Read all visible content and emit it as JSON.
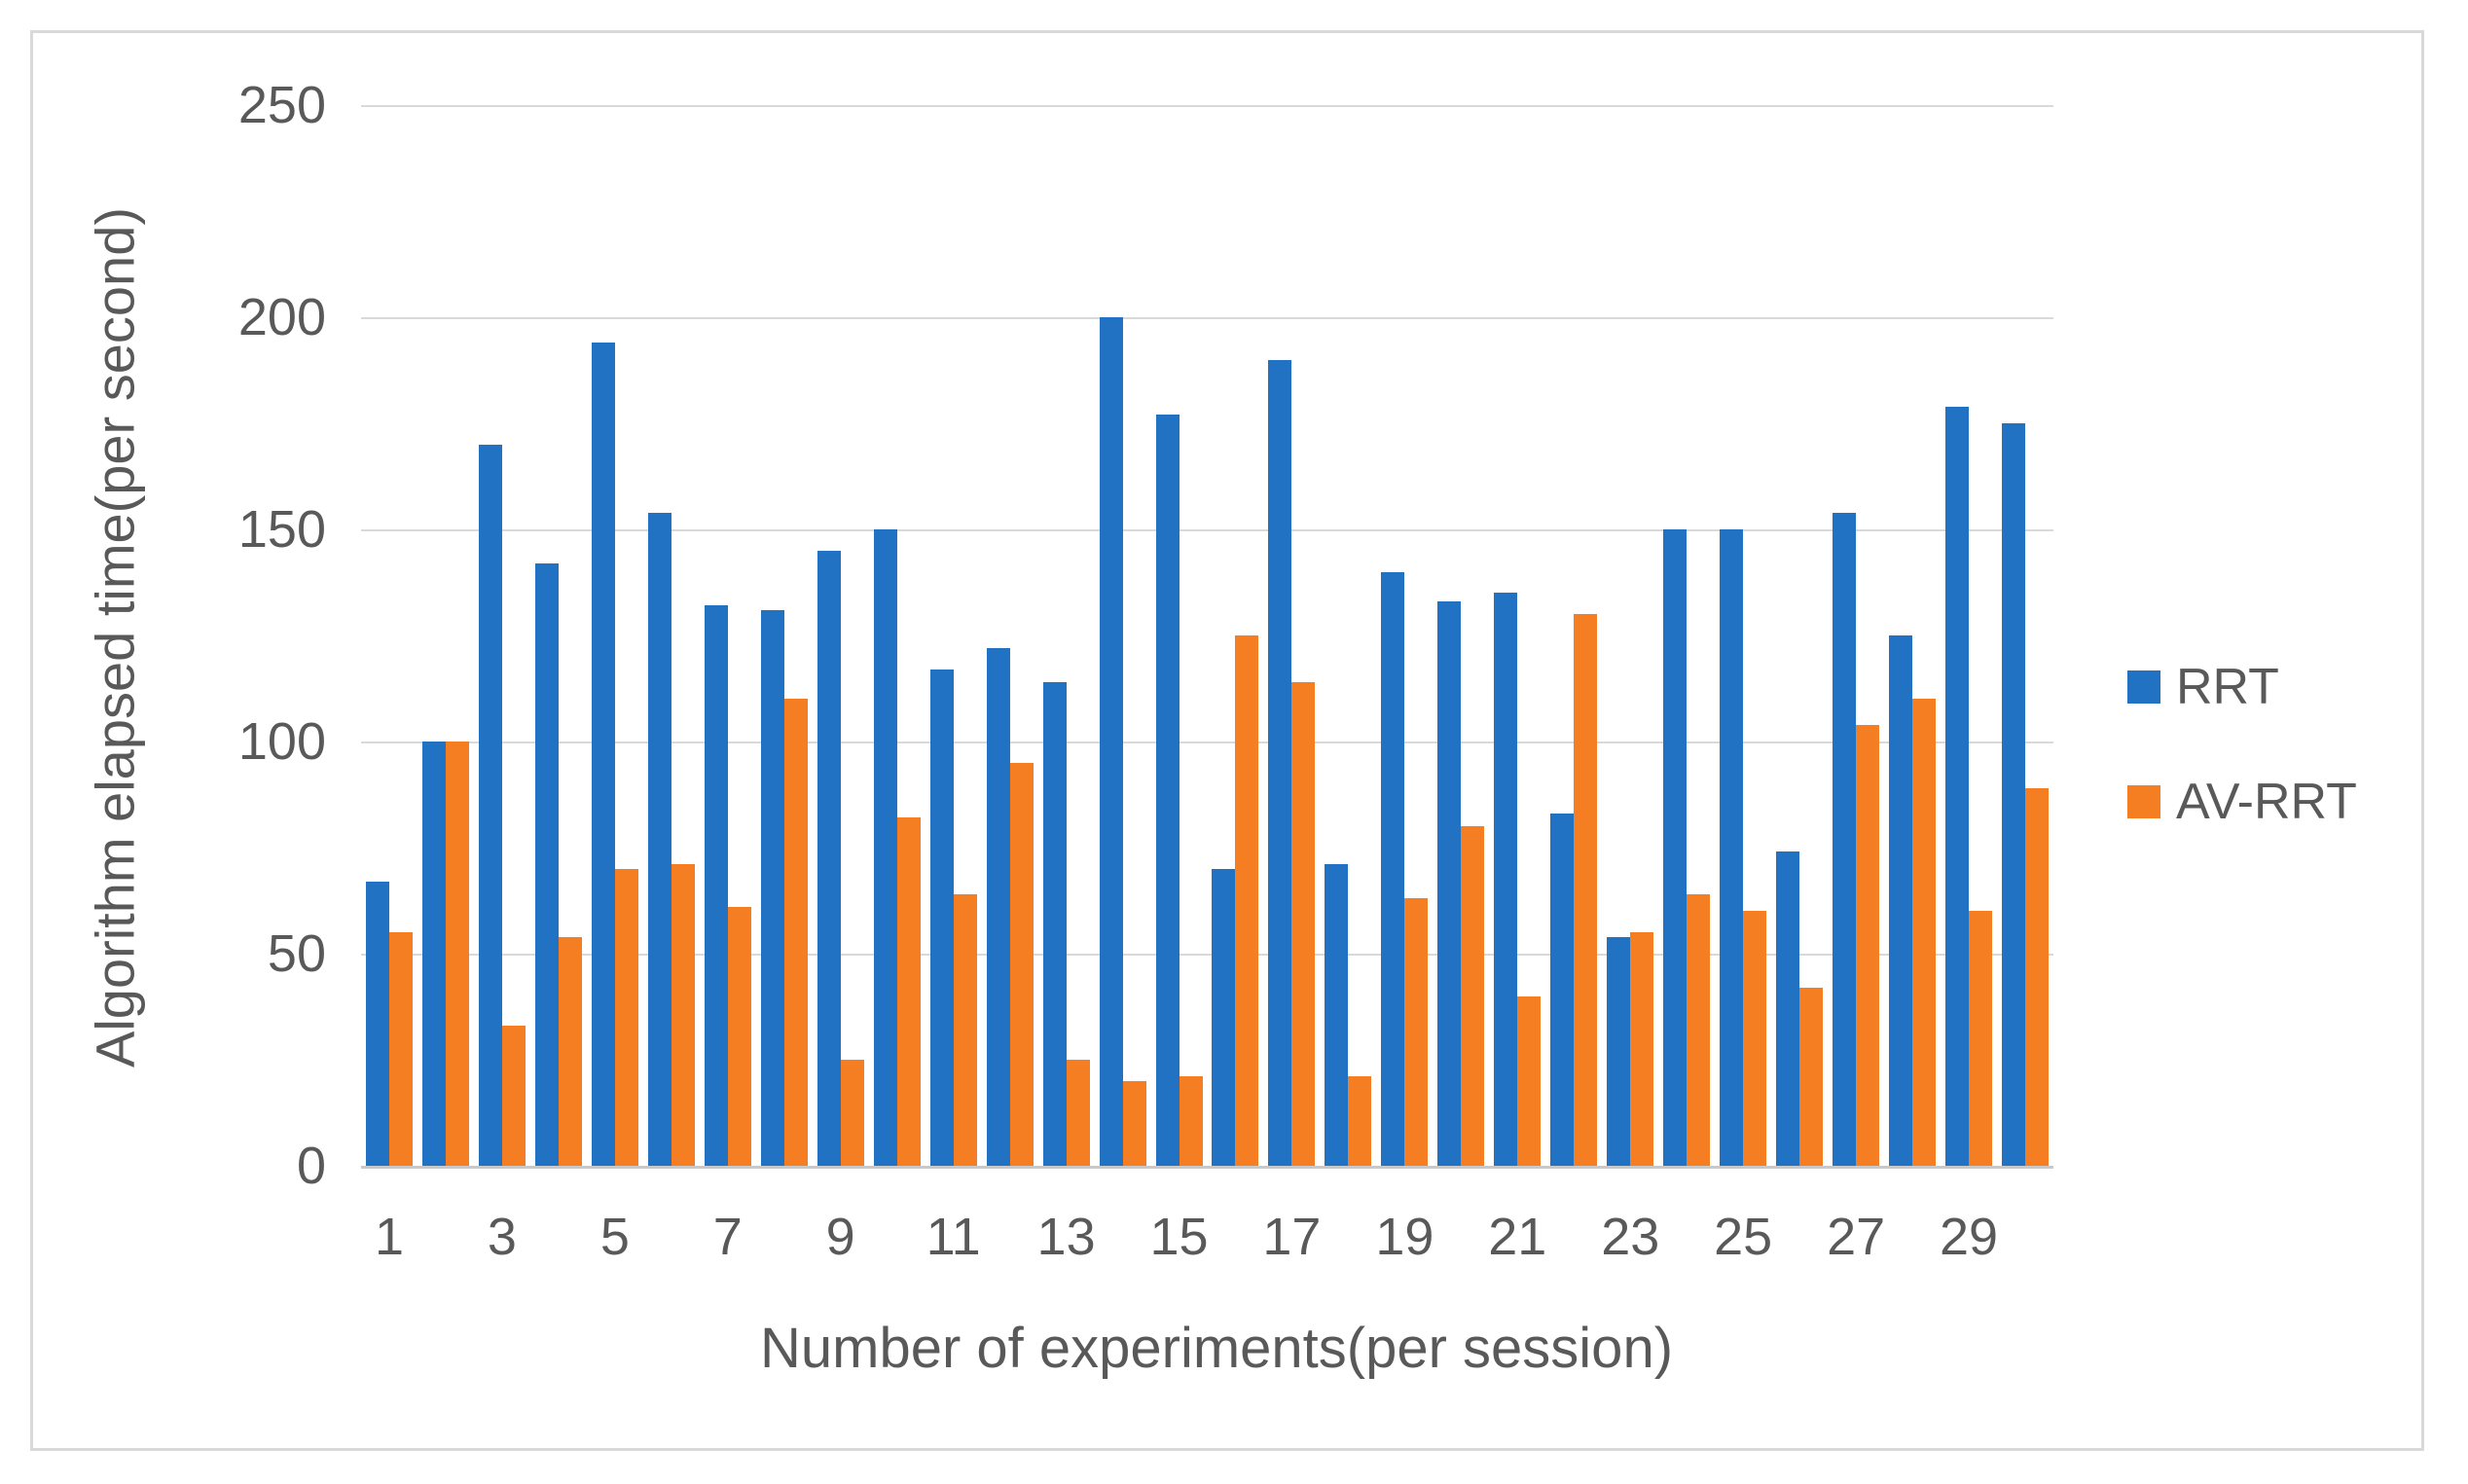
{
  "style": {
    "frame_border_color": "#d9d9d9",
    "gridline_color": "#d9d9d9",
    "baseline_color": "#c9c9c9",
    "text_color": "#595959",
    "background_color": "#ffffff"
  },
  "chart_data": {
    "type": "bar",
    "title": "",
    "xlabel": "Number of experiments(per session)",
    "ylabel": "Algorithm elapsed time(per second)",
    "categories": [
      1,
      2,
      3,
      4,
      5,
      6,
      7,
      8,
      9,
      10,
      11,
      12,
      13,
      14,
      15,
      16,
      17,
      18,
      19,
      20,
      21,
      22,
      23,
      24,
      25,
      26,
      27,
      28,
      29,
      30
    ],
    "x_tick_labels": [
      "1",
      "3",
      "5",
      "7",
      "9",
      "11",
      "13",
      "15",
      "17",
      "19",
      "21",
      "23",
      "25",
      "27",
      "29"
    ],
    "y_ticks": [
      0,
      50,
      100,
      150,
      200,
      250
    ],
    "ylim": [
      0,
      250
    ],
    "grid": true,
    "legend_position": "right",
    "series": [
      {
        "name": "RRT",
        "color": "#2272c4",
        "values": [
          67,
          100,
          170,
          142,
          194,
          154,
          132,
          131,
          145,
          150,
          117,
          122,
          114,
          200,
          177,
          70,
          190,
          71,
          140,
          133,
          135,
          83,
          54,
          150,
          150,
          74,
          154,
          125,
          179,
          175
        ]
      },
      {
        "name": "AV-RRT",
        "color": "#f57e22",
        "values": [
          55,
          100,
          33,
          54,
          70,
          71,
          61,
          110,
          25,
          82,
          64,
          95,
          25,
          20,
          21,
          125,
          114,
          21,
          63,
          80,
          40,
          130,
          55,
          64,
          60,
          42,
          104,
          110,
          60,
          89
        ]
      }
    ]
  },
  "legend": {
    "items": [
      {
        "label": "RRT"
      },
      {
        "label": "AV-RRT"
      }
    ]
  }
}
